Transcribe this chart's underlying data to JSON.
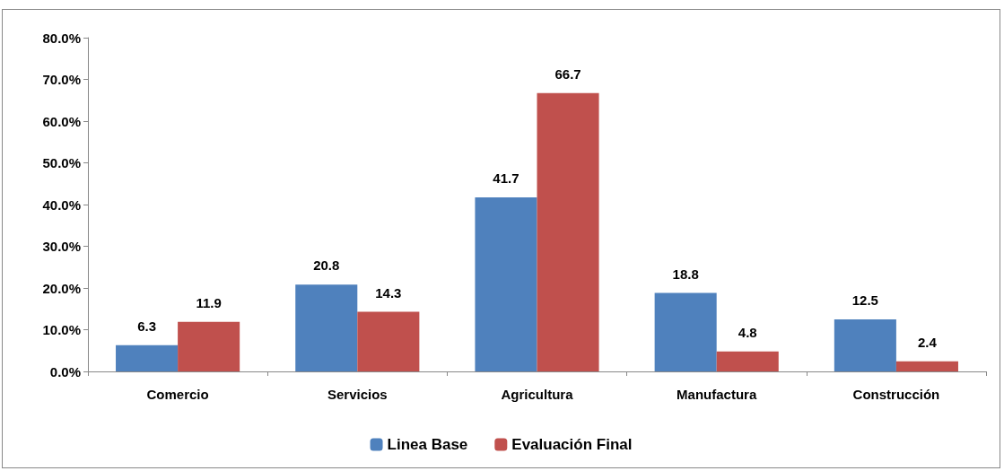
{
  "chart_data": {
    "type": "bar",
    "categories": [
      "Comercio",
      "Servicios",
      "Agricultura",
      "Manufactura",
      "Construcción"
    ],
    "series": [
      {
        "name": "Linea Base",
        "color": "#4f81bd",
        "values": [
          6.3,
          20.8,
          41.7,
          18.8,
          12.5
        ]
      },
      {
        "name": "Evaluación Final",
        "color": "#c0504d",
        "values": [
          11.9,
          14.3,
          66.7,
          4.8,
          2.4
        ]
      }
    ],
    "ylim": [
      0,
      80
    ],
    "yticks": [
      {
        "value": 0,
        "label": "0.0%"
      },
      {
        "value": 10,
        "label": "10.0%"
      },
      {
        "value": 20,
        "label": "20.0%"
      },
      {
        "value": 30,
        "label": "30.0%"
      },
      {
        "value": 40,
        "label": "40.0%"
      },
      {
        "value": 50,
        "label": "50.0%"
      },
      {
        "value": 60,
        "label": "60.0%"
      },
      {
        "value": 70,
        "label": "70.0%"
      },
      {
        "value": 80,
        "label": "80.0%"
      }
    ],
    "data_labels": true,
    "legend": "bottom",
    "grid": false
  }
}
